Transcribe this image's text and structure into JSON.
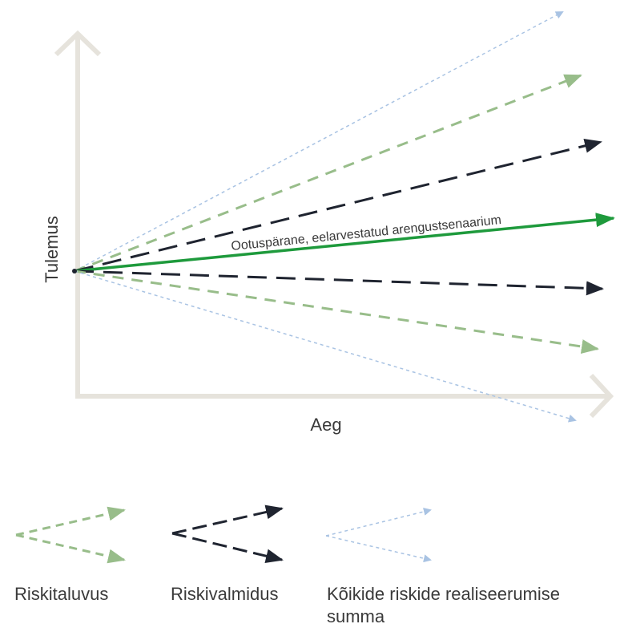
{
  "diagram": {
    "y_axis_label": "Tulemus",
    "x_axis_label": "Aeg",
    "main_line_label": "Ootuspärane, eelarvestatud arengustsenaarium"
  },
  "legend": {
    "risk_tolerance": "Riskitaluvus",
    "risk_appetite": "Riskivalmidus",
    "all_risks_line1": "Kõikide riskide realiseerumise",
    "all_risks_line2": "summa"
  },
  "colors": {
    "axis": "#e6e3dc",
    "main_green": "#1e9a3c",
    "dark": "#1f2430",
    "light_green": "#98bd8a",
    "light_blue": "#a9c3e3",
    "text": "#3a3a3a"
  }
}
